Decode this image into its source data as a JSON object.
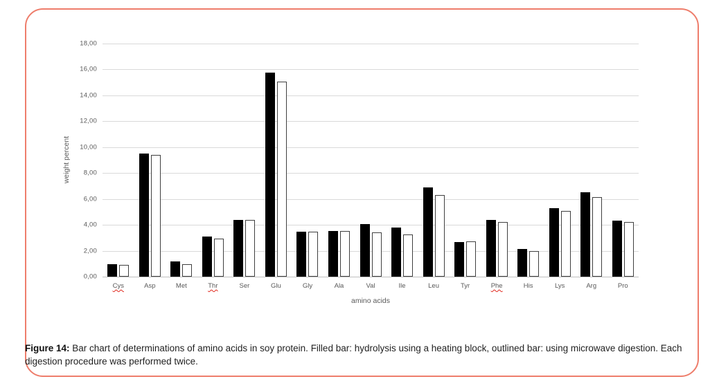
{
  "figure": {
    "border_color": "#ee7d6b",
    "caption": {
      "label": "Figure 14:",
      "text": " Bar chart of determinations of amino acids in soy protein. Filled bar: hydrolysis using a heating block, outlined bar: using microwave digestion. Each digestion procedure was performed twice."
    }
  },
  "chart_data": {
    "type": "bar",
    "title": "",
    "xlabel": "amino acids",
    "ylabel": "weight percent",
    "ylim": [
      0,
      18
    ],
    "ytick_values": [
      18,
      16,
      14,
      12,
      10,
      8,
      6,
      4,
      2,
      0
    ],
    "ytick_labels": [
      "18,00",
      "16,00",
      "14,00",
      "12,00",
      "10,00",
      "8,00",
      "6,00",
      "4,00",
      "2,00",
      "0,00"
    ],
    "grid": true,
    "legend_position": "none",
    "categories": [
      "Cys",
      "Asp",
      "Met",
      "Thr",
      "Ser",
      "Glu",
      "Gly",
      "Ala",
      "Val",
      "Ile",
      "Leu",
      "Tyr",
      "Phe",
      "His",
      "Lys",
      "Arg",
      "Pro"
    ],
    "spellcheck_underlined_categories": [
      "Cys",
      "Thr",
      "Phe"
    ],
    "series": [
      {
        "name": "hydrolysis using a heating block",
        "style": "filled",
        "fill": "#000000",
        "values": [
          0.95,
          9.5,
          1.15,
          3.1,
          4.4,
          15.75,
          3.45,
          3.5,
          4.05,
          3.8,
          6.9,
          2.65,
          4.4,
          2.15,
          5.3,
          6.5,
          4.35
        ]
      },
      {
        "name": "microwave digestion",
        "style": "outlined",
        "fill": "#ffffff",
        "stroke": "#3f3f3f",
        "values": [
          0.9,
          9.4,
          0.95,
          2.95,
          4.4,
          15.05,
          3.45,
          3.5,
          3.4,
          3.25,
          6.3,
          2.75,
          4.2,
          2.0,
          5.05,
          6.15,
          4.2
        ]
      }
    ],
    "colors": {
      "gridline": "#d9d9d9",
      "axis_line": "#bfbfbf",
      "tick_text": "#595959",
      "spellcheck_underline": "#e0261b"
    }
  }
}
